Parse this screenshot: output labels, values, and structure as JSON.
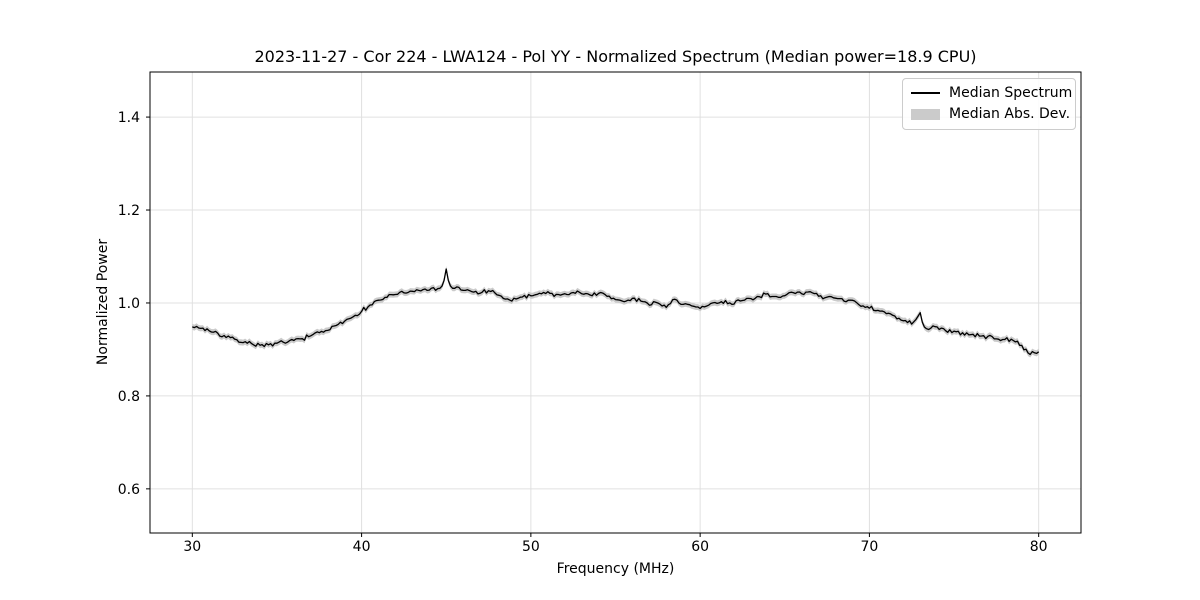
{
  "figure": {
    "title": "2023-11-27 - Cor 224 - LWA124 - Pol YY - Normalized Spectrum (Median power=18.9 CPU)",
    "xlabel": "Frequency (MHz)",
    "ylabel": "Normalized Power",
    "background": "#ffffff"
  },
  "legend": {
    "position": "upper right",
    "entries": [
      {
        "label": "Median Spectrum",
        "type": "line",
        "color": "#000000"
      },
      {
        "label": "Median Abs. Dev.",
        "type": "patch",
        "color": "#cbcbcb"
      }
    ]
  },
  "colors": {
    "line": "#000000",
    "band": "#cbcbcb",
    "grid": "#e0e0e0",
    "spine": "#000000",
    "tick_text": "#000000"
  },
  "chart_data": {
    "type": "line",
    "title": "2023-11-27 - Cor 224 - LWA124 - Pol YY - Normalized Spectrum (Median power=18.9 CPU)",
    "xlabel": "Frequency (MHz)",
    "ylabel": "Normalized Power",
    "xlim": [
      27.5,
      82.5
    ],
    "ylim": [
      0.505,
      1.497
    ],
    "xticks": [
      30,
      40,
      50,
      60,
      70,
      80
    ],
    "yticks": [
      0.6,
      0.8,
      1.0,
      1.2,
      1.4
    ],
    "grid": true,
    "legend_position": "upper right",
    "series": [
      {
        "name": "Median Spectrum",
        "color": "#000000",
        "x_start": 30.0,
        "x_step": 0.5,
        "values": [
          0.95,
          0.946,
          0.941,
          0.934,
          0.927,
          0.921,
          0.916,
          0.912,
          0.91,
          0.909,
          0.912,
          0.915,
          0.919,
          0.924,
          0.929,
          0.935,
          0.942,
          0.95,
          0.96,
          0.971,
          0.983,
          0.995,
          1.005,
          1.013,
          1.019,
          1.022,
          1.024,
          1.027,
          1.029,
          1.031,
          1.073,
          1.031,
          1.028,
          1.024,
          1.021,
          1.027,
          1.018,
          1.007,
          1.009,
          1.013,
          1.016,
          1.02,
          1.023,
          1.017,
          1.019,
          1.024,
          1.021,
          1.017,
          1.021,
          1.014,
          1.008,
          1.002,
          1.01,
          1.004,
          0.996,
          1.001,
          0.992,
          1.008,
          0.997,
          0.993,
          0.987,
          0.996,
          1.0,
          1.004,
          0.999,
          1.006,
          1.009,
          1.014,
          1.019,
          1.014,
          1.017,
          1.021,
          1.019,
          1.024,
          1.016,
          1.012,
          1.009,
          1.004,
          1.005,
          0.992,
          0.989,
          0.984,
          0.978,
          0.971,
          0.963,
          0.956,
          0.979,
          0.944,
          0.949,
          0.941,
          0.938,
          0.935,
          0.931,
          0.929,
          0.927,
          0.924,
          0.921,
          0.918,
          0.909,
          0.89,
          0.895
        ],
        "annotations": [
          "narrow spike at 45.0 MHz reaching ~1.073",
          "small spike at ~72.8 MHz reaching ~0.98",
          "narrow dip at ~79.3 MHz to ~0.885"
        ]
      },
      {
        "name": "Median Abs. Dev.",
        "color": "#cbcbcb",
        "band_halfwidth": 0.0065,
        "description": "thin shaded band centered on the median spectrum"
      }
    ]
  }
}
